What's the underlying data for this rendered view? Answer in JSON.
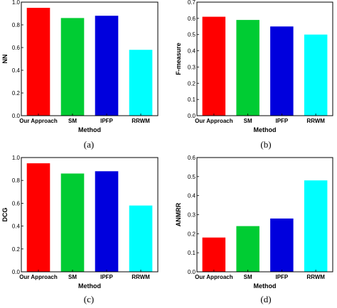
{
  "chart_data": [
    {
      "type": "bar",
      "panel": "(a)",
      "categories": [
        "Our Approach",
        "SM",
        "IPFP",
        "RRWM"
      ],
      "values": [
        0.95,
        0.86,
        0.88,
        0.58
      ],
      "colors": [
        "#ff0000",
        "#00cc33",
        "#0000dd",
        "#00ffff"
      ],
      "xlabel": "Method",
      "ylabel": "NN",
      "ylim": [
        0,
        1.0
      ],
      "yticks": [
        "0.0",
        "0.2",
        "0.4",
        "0.6",
        "0.8",
        "1.0"
      ]
    },
    {
      "type": "bar",
      "panel": "(b)",
      "categories": [
        "Our Approach",
        "SM",
        "IPFP",
        "RRWM"
      ],
      "values": [
        0.61,
        0.59,
        0.55,
        0.5
      ],
      "colors": [
        "#ff0000",
        "#00cc33",
        "#0000dd",
        "#00ffff"
      ],
      "xlabel": "Method",
      "ylabel": "F-measure",
      "ylim": [
        0,
        0.7
      ],
      "yticks": [
        "0.0",
        "0.1",
        "0.2",
        "0.3",
        "0.4",
        "0.5",
        "0.6",
        "0.7"
      ]
    },
    {
      "type": "bar",
      "panel": "(c)",
      "categories": [
        "Our Approach",
        "SM",
        "IPFP",
        "RRWM"
      ],
      "values": [
        0.95,
        0.86,
        0.88,
        0.58
      ],
      "colors": [
        "#ff0000",
        "#00cc33",
        "#0000dd",
        "#00ffff"
      ],
      "xlabel": "Method",
      "ylabel": "DCG",
      "ylim": [
        0,
        1.0
      ],
      "yticks": [
        "0.0",
        "0.2",
        "0.4",
        "0.6",
        "0.8",
        "1.0"
      ]
    },
    {
      "type": "bar",
      "panel": "(d)",
      "categories": [
        "Our Approach",
        "SM",
        "IPFP",
        "RRWM"
      ],
      "values": [
        0.18,
        0.24,
        0.28,
        0.48
      ],
      "colors": [
        "#ff0000",
        "#00cc33",
        "#0000dd",
        "#00ffff"
      ],
      "xlabel": "Method",
      "ylabel": "ANMRR",
      "ylim": [
        0,
        0.6
      ],
      "yticks": [
        "0.0",
        "0.1",
        "0.2",
        "0.3",
        "0.4",
        "0.5",
        "0.6"
      ]
    }
  ]
}
